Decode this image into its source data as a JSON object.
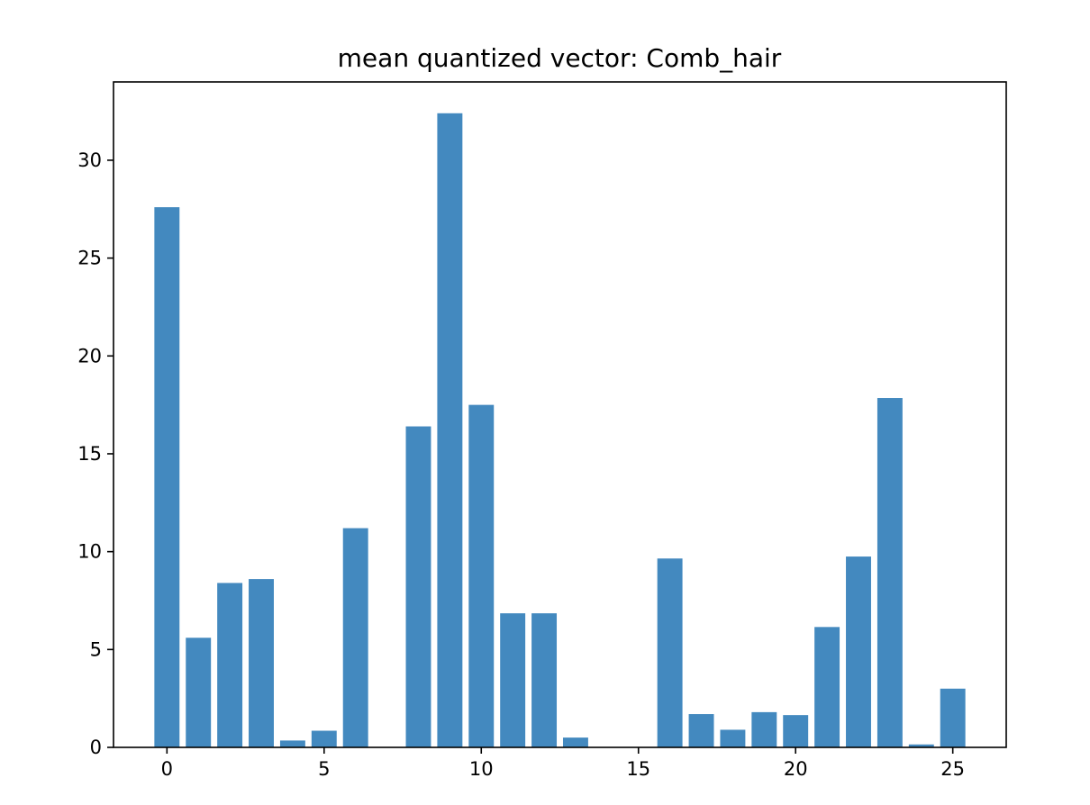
{
  "chart_data": {
    "type": "bar",
    "title": "mean quantized vector: Comb_hair",
    "xlabel": "",
    "ylabel": "",
    "x": [
      0,
      1,
      2,
      3,
      4,
      5,
      6,
      7,
      8,
      9,
      10,
      11,
      12,
      13,
      14,
      15,
      16,
      17,
      18,
      19,
      20,
      21,
      22,
      23,
      24,
      25
    ],
    "values": [
      27.6,
      5.6,
      8.4,
      8.6,
      0.35,
      0.85,
      11.2,
      0,
      16.4,
      32.4,
      17.5,
      6.85,
      6.85,
      0.5,
      0,
      0,
      9.65,
      1.7,
      0.9,
      1.8,
      1.65,
      6.15,
      9.75,
      17.85,
      0.15,
      3.0
    ],
    "xlim": [
      -1.7,
      26.7
    ],
    "ylim": [
      0,
      34.0
    ],
    "xticks": [
      0,
      5,
      10,
      15,
      20,
      25
    ],
    "yticks": [
      0,
      5,
      10,
      15,
      20,
      25,
      30
    ],
    "bar_color": "#4389bf",
    "grid": false,
    "legend": "none"
  }
}
